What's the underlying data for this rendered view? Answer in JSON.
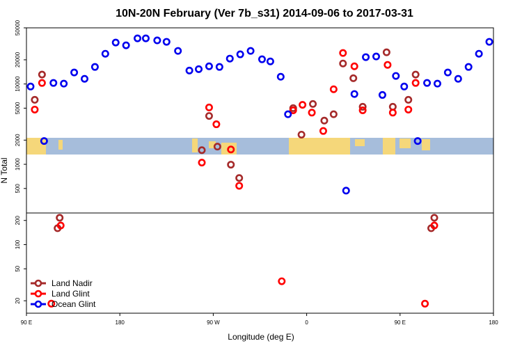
{
  "chart_data": {
    "type": "scatter",
    "title": "10N-20N February (Ver 7b_s31)   2014-09-06 to 2017-03-31",
    "x_label": "Longitude (deg E)",
    "y_label": "N Total",
    "xlim": [
      90,
      540
    ],
    "xticks": [
      {
        "value": 90,
        "label": "90 E"
      },
      180,
      {
        "value": 270,
        "label": "90 W"
      },
      {
        "value": 360,
        "label": "0"
      },
      {
        "value": 450,
        "label": "90 E"
      },
      {
        "value": 540,
        "label": "180"
      }
    ],
    "ylim": [
      14,
      50000
    ],
    "log_y": true,
    "yticks": [
      20,
      50,
      100,
      200,
      500,
      1000,
      2000,
      5000,
      10000,
      20000,
      50000
    ],
    "legend": "lower left",
    "series": [
      {
        "name": "Land Nadir",
        "color": "#a52a2a",
        "x": [
          98,
          105,
          122,
          120,
          259,
          266,
          274,
          287,
          295,
          347,
          355,
          366,
          377,
          386,
          395,
          405,
          414,
          437,
          443,
          458,
          465,
          483,
          480
        ],
        "values": [
          6350,
          13100,
          216,
          160,
          1500,
          4000,
          1660,
          990,
          675,
          5000,
          2340,
          5640,
          3500,
          4200,
          18000,
          11800,
          5200,
          24800,
          5200,
          6350,
          13100,
          216,
          160
        ]
      },
      {
        "name": "Land Glint",
        "color": "#ff0000",
        "x": [
          98,
          105,
          114,
          123,
          259,
          266,
          273,
          287,
          295,
          336,
          347,
          356,
          365,
          376,
          386,
          395,
          406,
          414,
          438,
          443,
          458,
          465,
          474,
          483
        ],
        "values": [
          4800,
          10300,
          18.4,
          173,
          1050,
          5100,
          3150,
          1530,
          540,
          35,
          4700,
          5500,
          4400,
          2600,
          8600,
          24300,
          16600,
          4700,
          17300,
          4400,
          4800,
          10300,
          18.4,
          173
        ]
      },
      {
        "name": "Ocean Glint",
        "color": "#0000ee",
        "x": [
          94,
          107,
          116,
          126,
          136,
          146,
          156,
          166,
          176,
          186,
          197,
          205,
          216,
          225,
          236,
          247,
          256,
          266,
          276,
          286,
          296,
          306,
          317,
          325,
          335,
          342,
          398,
          406,
          417,
          427,
          433,
          446,
          454,
          467,
          476,
          486,
          496,
          506,
          516,
          526,
          536
        ],
        "values": [
          9300,
          1950,
          10300,
          10100,
          13900,
          11600,
          16300,
          23800,
          32800,
          30300,
          37000,
          37000,
          34900,
          33500,
          25800,
          14700,
          15300,
          16600,
          16300,
          20700,
          23400,
          25800,
          20300,
          19100,
          12300,
          4200,
          470,
          7500,
          21600,
          22000,
          7300,
          12600,
          9300,
          1950,
          10300,
          10100,
          13900,
          11600,
          16300,
          23800,
          33500
        ]
      }
    ]
  }
}
